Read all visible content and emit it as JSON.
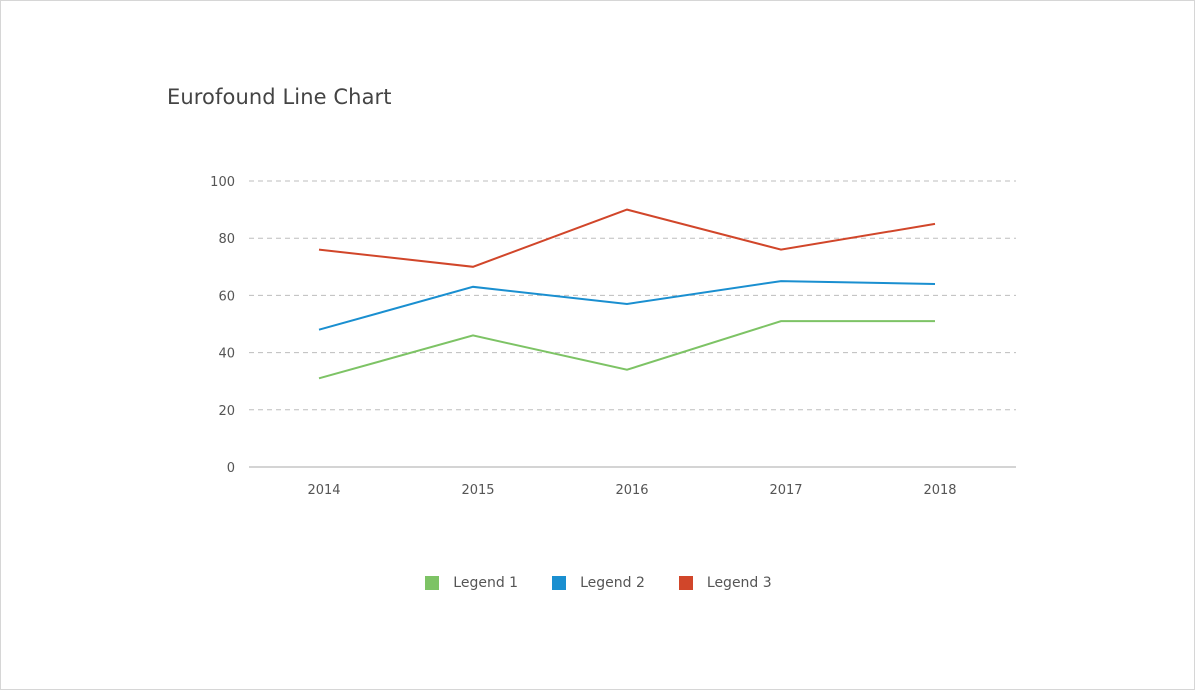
{
  "chart_data": {
    "type": "line",
    "title": "Eurofound Line Chart",
    "categories": [
      "2014",
      "2015",
      "2016",
      "2017",
      "2018"
    ],
    "yticks": [
      "0",
      "20",
      "40",
      "60",
      "80",
      "100"
    ],
    "ylim": [
      0,
      100
    ],
    "grid": true,
    "legend_position": "bottom",
    "series": [
      {
        "name": "Legend 1",
        "color": "#7dc365",
        "values": [
          31,
          46,
          34,
          51,
          51
        ]
      },
      {
        "name": "Legend 2",
        "color": "#1a8fd0",
        "values": [
          48,
          63,
          57,
          65,
          64
        ]
      },
      {
        "name": "Legend 3",
        "color": "#d1462a",
        "values": [
          76,
          70,
          90,
          76,
          85
        ]
      }
    ]
  }
}
